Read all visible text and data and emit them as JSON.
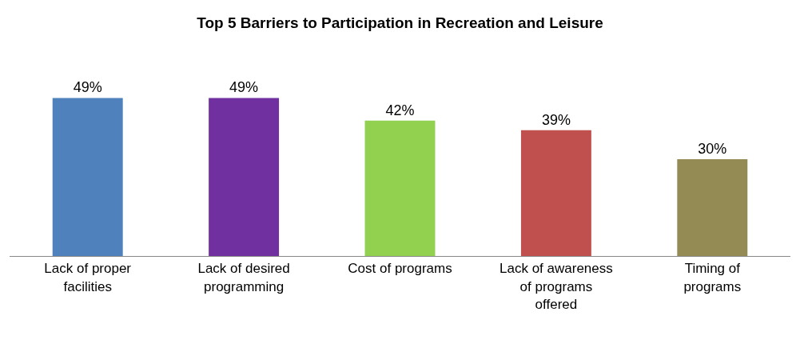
{
  "chart_data": {
    "type": "bar",
    "title": "Top 5 Barriers to Participation in Recreation and Leisure",
    "categories": [
      "Lack of proper facilities",
      "Lack of desired programming",
      "Cost of programs",
      "Lack of awareness of programs offered",
      "Timing of programs"
    ],
    "values": [
      49,
      49,
      42,
      39,
      30
    ],
    "colors": [
      "#4f81bd",
      "#7030a0",
      "#92d050",
      "#c0504d",
      "#948a54"
    ],
    "value_labels": [
      "49%",
      "49%",
      "42%",
      "39%",
      "30%"
    ]
  }
}
